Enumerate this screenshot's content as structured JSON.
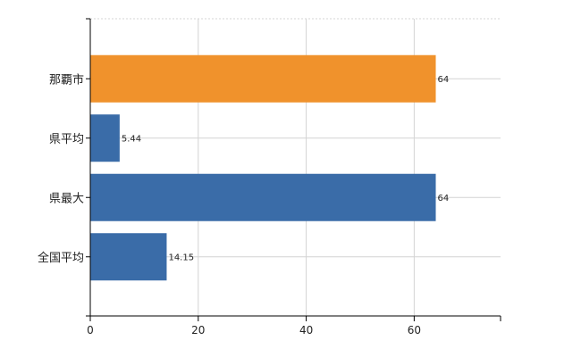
{
  "chart_data": {
    "type": "bar",
    "orientation": "horizontal",
    "categories": [
      "那覇市",
      "県平均",
      "県最大",
      "全国平均"
    ],
    "values": [
      64,
      5.44,
      64,
      14.15
    ],
    "data_labels": [
      "64",
      "5.44",
      "64",
      "14.15"
    ],
    "bar_colors": [
      "#f0922c",
      "#3a6ca8",
      "#3a6ca8",
      "#3a6ca8"
    ],
    "xlim": [
      0,
      76
    ],
    "x_ticks": [
      0,
      20,
      40,
      60
    ],
    "x_tick_labels": [
      "0",
      "20",
      "40",
      "60"
    ],
    "grid": true,
    "grid_color": "#d4d4d4",
    "axis_color": "#000000",
    "title": "",
    "xlabel": "",
    "ylabel": ""
  }
}
